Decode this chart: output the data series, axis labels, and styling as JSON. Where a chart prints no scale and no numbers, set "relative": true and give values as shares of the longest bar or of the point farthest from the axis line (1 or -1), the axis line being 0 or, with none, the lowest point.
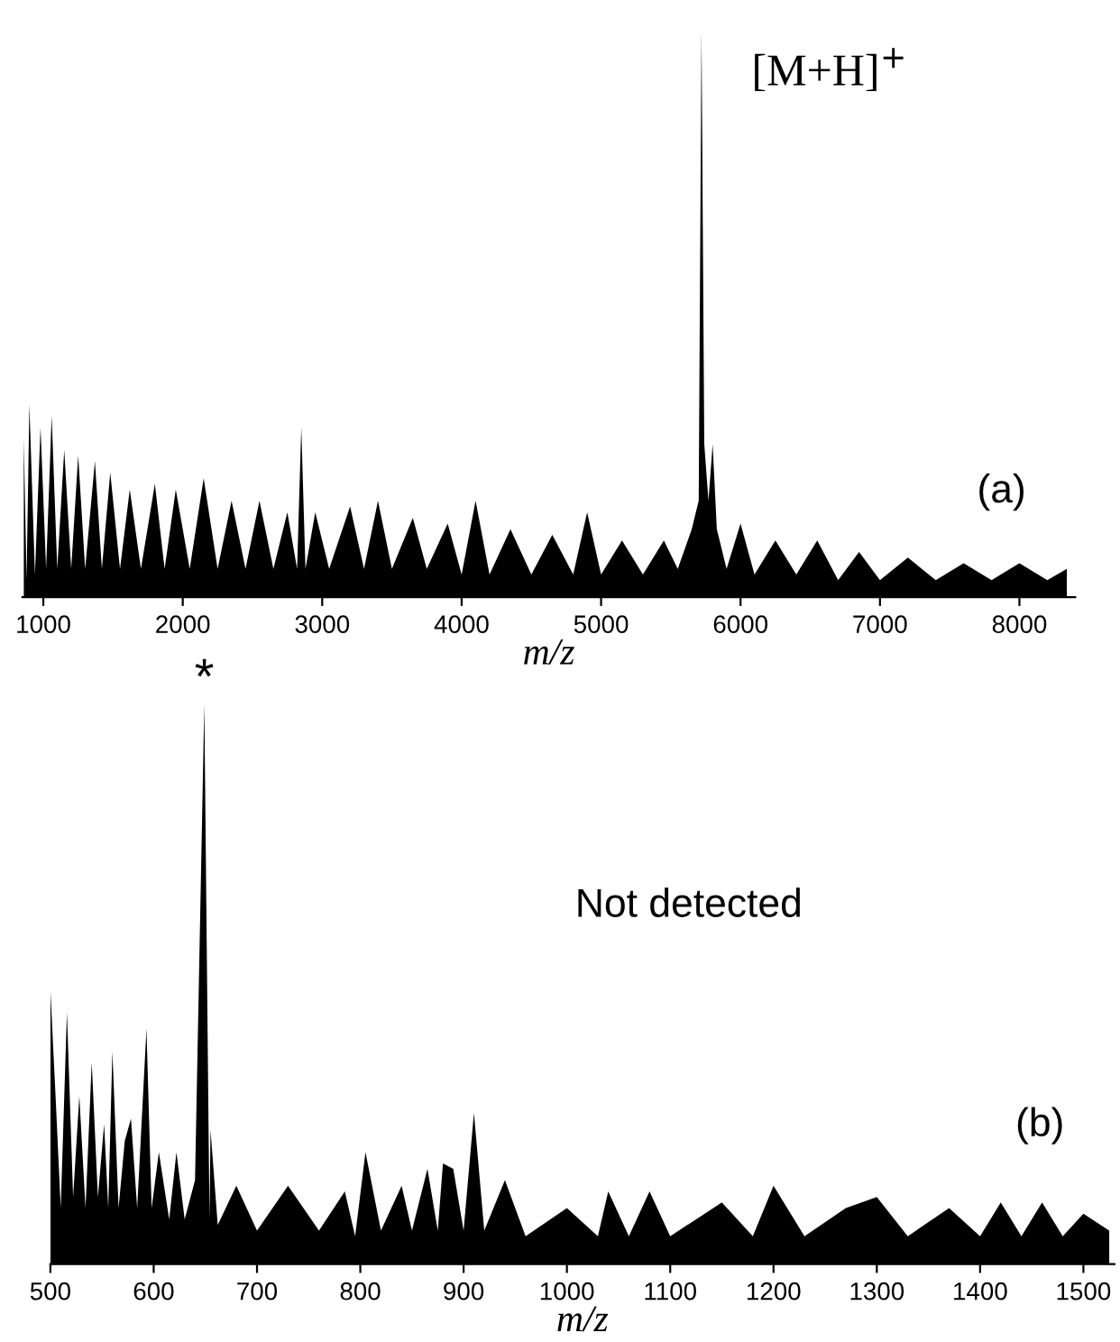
{
  "chart_data": [
    {
      "type": "area",
      "relative": true,
      "xlabel": "m/z",
      "xlim": [
        850,
        8400
      ],
      "xticks": [
        1000,
        2000,
        3000,
        4000,
        5000,
        6000,
        7000,
        8000
      ],
      "annotations": [
        {
          "text": "[M+H]$^{+}$",
          "x": 5720,
          "y": 1.0
        },
        "(a)"
      ],
      "x": [
        860,
        880,
        900,
        940,
        980,
        1020,
        1060,
        1100,
        1150,
        1200,
        1250,
        1300,
        1370,
        1420,
        1480,
        1550,
        1620,
        1700,
        1800,
        1870,
        1950,
        2050,
        2150,
        2250,
        2350,
        2450,
        2550,
        2650,
        2750,
        2820,
        2850,
        2880,
        2950,
        3050,
        3200,
        3300,
        3400,
        3500,
        3650,
        3750,
        3900,
        4000,
        4100,
        4200,
        4350,
        4500,
        4650,
        4800,
        4900,
        5000,
        5150,
        5300,
        5450,
        5550,
        5650,
        5700,
        5720,
        5740,
        5770,
        5800,
        5830,
        5900,
        6000,
        6100,
        6250,
        6400,
        6550,
        6700,
        6850,
        7000,
        7200,
        7400,
        7600,
        7800,
        8000,
        8200,
        8340
      ],
      "series": [
        {
          "color": "#000000",
          "values": [
            0.28,
            0.03,
            0.34,
            0.04,
            0.3,
            0.05,
            0.32,
            0.05,
            0.26,
            0.05,
            0.25,
            0.05,
            0.24,
            0.05,
            0.22,
            0.05,
            0.19,
            0.05,
            0.2,
            0.05,
            0.19,
            0.05,
            0.21,
            0.05,
            0.17,
            0.05,
            0.17,
            0.05,
            0.15,
            0.05,
            0.3,
            0.05,
            0.15,
            0.05,
            0.16,
            0.05,
            0.17,
            0.05,
            0.14,
            0.05,
            0.13,
            0.04,
            0.17,
            0.04,
            0.12,
            0.04,
            0.11,
            0.04,
            0.15,
            0.04,
            0.1,
            0.04,
            0.1,
            0.05,
            0.12,
            0.17,
            1.0,
            0.27,
            0.17,
            0.27,
            0.12,
            0.05,
            0.13,
            0.04,
            0.1,
            0.04,
            0.1,
            0.03,
            0.08,
            0.03,
            0.07,
            0.03,
            0.06,
            0.03,
            0.06,
            0.03,
            0.05
          ]
        }
      ]
    },
    {
      "type": "area",
      "relative": true,
      "xlabel": "m/z",
      "xlim": [
        500,
        1530
      ],
      "xticks": [
        500,
        600,
        700,
        800,
        900,
        1000,
        1100,
        1200,
        1300,
        1400,
        1500
      ],
      "annotations": [
        {
          "text": "*",
          "x": 649,
          "y": 1.0
        },
        "Not detected",
        "(b)"
      ],
      "x": [
        500,
        505,
        510,
        516,
        522,
        528,
        534,
        540,
        546,
        552,
        556,
        560,
        566,
        572,
        578,
        584,
        593,
        598,
        605,
        615,
        622,
        630,
        640,
        649,
        654,
        655,
        662,
        680,
        700,
        730,
        760,
        785,
        795,
        805,
        820,
        840,
        850,
        865,
        875,
        880,
        890,
        900,
        910,
        920,
        940,
        960,
        1000,
        1030,
        1040,
        1060,
        1080,
        1100,
        1150,
        1180,
        1200,
        1230,
        1270,
        1300,
        1330,
        1370,
        1400,
        1420,
        1440,
        1460,
        1480,
        1500,
        1525
      ],
      "series": [
        {
          "color": "#000000",
          "values": [
            0.49,
            0.3,
            0.1,
            0.45,
            0.12,
            0.3,
            0.1,
            0.36,
            0.12,
            0.25,
            0.1,
            0.38,
            0.1,
            0.22,
            0.26,
            0.1,
            0.42,
            0.1,
            0.2,
            0.08,
            0.2,
            0.08,
            0.15,
            1.0,
            0.08,
            0.24,
            0.07,
            0.14,
            0.06,
            0.14,
            0.06,
            0.13,
            0.05,
            0.2,
            0.06,
            0.14,
            0.06,
            0.17,
            0.06,
            0.18,
            0.17,
            0.06,
            0.27,
            0.06,
            0.15,
            0.05,
            0.1,
            0.05,
            0.13,
            0.05,
            0.13,
            0.05,
            0.11,
            0.05,
            0.14,
            0.05,
            0.1,
            0.12,
            0.05,
            0.1,
            0.05,
            0.11,
            0.05,
            0.11,
            0.05,
            0.09,
            0.06
          ]
        }
      ]
    }
  ]
}
